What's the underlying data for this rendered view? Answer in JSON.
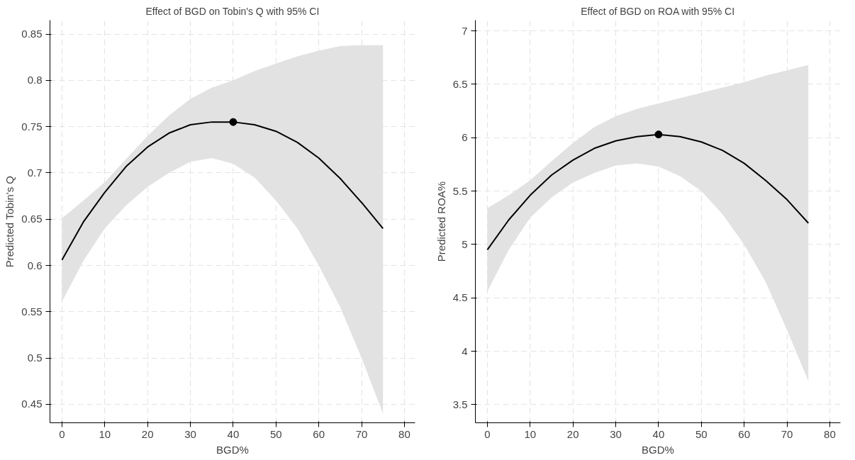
{
  "chart_data": [
    {
      "type": "line",
      "title": "Effect of BGD on Tobin's Q with 95% CI",
      "xlabel": "BGD%",
      "ylabel": "Predicted Tobin's Q",
      "xlim": [
        -2.8,
        82.5
      ],
      "ylim": [
        0.43,
        0.865
      ],
      "xticks": [
        0,
        10,
        20,
        30,
        40,
        50,
        60,
        70,
        80
      ],
      "yticks": [
        0.45,
        0.5,
        0.55,
        0.6,
        0.65,
        0.7,
        0.75,
        0.8,
        0.85
      ],
      "grid": true,
      "line_style": "solid",
      "marker": "none",
      "series": [
        {
          "color": "#000000",
          "x": [
            0,
            5,
            10,
            15,
            20,
            25,
            30,
            35,
            40,
            45,
            50,
            55,
            60,
            65,
            70,
            75
          ],
          "values": [
            0.606,
            0.647,
            0.679,
            0.707,
            0.728,
            0.743,
            0.752,
            0.755,
            0.755,
            0.752,
            0.745,
            0.733,
            0.716,
            0.694,
            0.668,
            0.64
          ],
          "lower": [
            0.561,
            0.605,
            0.64,
            0.665,
            0.685,
            0.7,
            0.712,
            0.716,
            0.71,
            0.695,
            0.67,
            0.64,
            0.6,
            0.555,
            0.5,
            0.44
          ],
          "upper": [
            0.651,
            0.67,
            0.69,
            0.715,
            0.74,
            0.762,
            0.78,
            0.792,
            0.8,
            0.81,
            0.818,
            0.826,
            0.832,
            0.837,
            0.838,
            0.838
          ]
        },
        {
          "type": "scatter",
          "color": "#000000",
          "marker": "circle",
          "x": [
            40
          ],
          "values": [
            0.755
          ]
        }
      ]
    },
    {
      "type": "line",
      "title": "Effect of BGD on ROA with 95% CI",
      "xlabel": "BGD%",
      "ylabel": "Predicted ROA%",
      "xlim": [
        -2.8,
        82.5
      ],
      "ylim": [
        3.33,
        7.1
      ],
      "xticks": [
        0,
        10,
        20,
        30,
        40,
        50,
        60,
        70,
        80
      ],
      "yticks": [
        3.5,
        4,
        4.5,
        5,
        5.5,
        6,
        6.5,
        7
      ],
      "grid": true,
      "line_style": "solid",
      "marker": "none",
      "series": [
        {
          "color": "#000000",
          "x": [
            0,
            5,
            10,
            15,
            20,
            25,
            30,
            35,
            40,
            45,
            50,
            55,
            60,
            65,
            70,
            75
          ],
          "values": [
            4.95,
            5.23,
            5.46,
            5.65,
            5.79,
            5.9,
            5.97,
            6.01,
            6.03,
            6.01,
            5.96,
            5.88,
            5.76,
            5.6,
            5.42,
            5.2
          ],
          "lower": [
            4.56,
            4.95,
            5.25,
            5.44,
            5.58,
            5.67,
            5.74,
            5.76,
            5.73,
            5.64,
            5.5,
            5.28,
            5.0,
            4.65,
            4.2,
            3.72
          ],
          "upper": [
            5.34,
            5.46,
            5.6,
            5.78,
            5.95,
            6.1,
            6.2,
            6.27,
            6.32,
            6.37,
            6.42,
            6.47,
            6.52,
            6.58,
            6.63,
            6.68
          ]
        },
        {
          "type": "scatter",
          "color": "#000000",
          "marker": "circle",
          "x": [
            40
          ],
          "values": [
            6.03
          ]
        }
      ]
    }
  ]
}
